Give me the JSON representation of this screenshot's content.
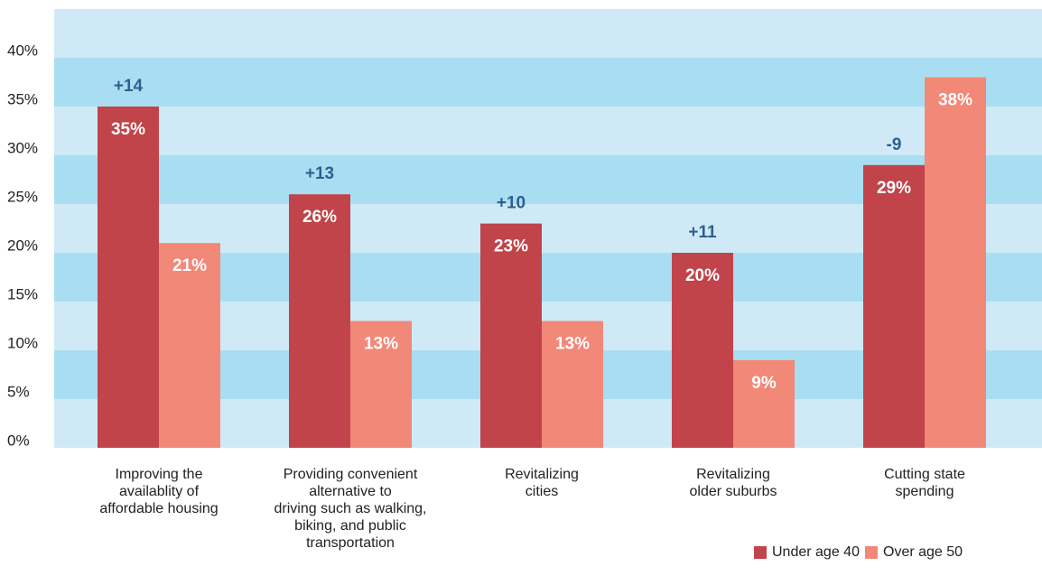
{
  "chart_data": {
    "type": "bar",
    "categories": [
      "Improving the\navailablity of\naffordable housing",
      "Providing convenient\nalternative to\ndriving such as walking,\nbiking, and public\ntransportation",
      "Revitalizing\ncities",
      "Revitalizing\nolder suburbs",
      "Cutting state\nspending"
    ],
    "series": [
      {
        "name": "Under age 40",
        "color": "#c0444a",
        "values": [
          35,
          26,
          23,
          20,
          29
        ],
        "value_labels": [
          "35%",
          "26%",
          "23%",
          "20%",
          "29%"
        ]
      },
      {
        "name": "Over age 50",
        "color": "#f28878",
        "values": [
          21,
          13,
          13,
          9,
          38
        ],
        "value_labels": [
          "21%",
          "13%",
          "13%",
          "9%",
          "38%"
        ]
      }
    ],
    "annotations": [
      "+14",
      "+13",
      "+10",
      "+11",
      "-9"
    ],
    "ylim": [
      0,
      45
    ],
    "yticks": [
      {
        "value": 0,
        "label": "0%"
      },
      {
        "value": 5,
        "label": "5%"
      },
      {
        "value": 10,
        "label": "10%"
      },
      {
        "value": 15,
        "label": "15%"
      },
      {
        "value": 20,
        "label": "20%"
      },
      {
        "value": 25,
        "label": "25%"
      },
      {
        "value": 30,
        "label": "30%"
      },
      {
        "value": 35,
        "label": "35%"
      },
      {
        "value": 40,
        "label": "40%"
      }
    ],
    "grid": true,
    "legend": "bottom-right"
  }
}
